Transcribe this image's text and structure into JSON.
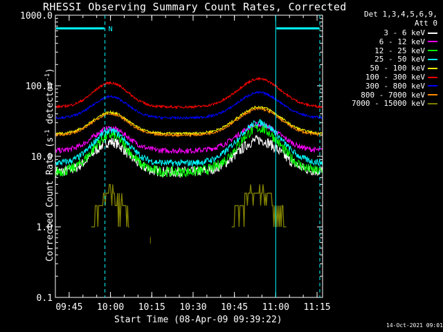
{
  "chart_data": {
    "type": "line",
    "title": "RHESSI Observing Summary Count Rates, Corrected",
    "xlabel": "Start Time (08-Apr-09 09:39:22)",
    "ylabel": "Corrected Count Rate (s^-1 detector^-1)",
    "ylabel_parts": {
      "pre": "Corrected Count Rate (s",
      "sup1": "-1",
      "mid": " detector",
      "sup2": "-1",
      "post": ")"
    },
    "yscale": "log",
    "ylim": [
      0.1,
      1000.0
    ],
    "xlim_minutes_after_0940": [
      0,
      97
    ],
    "x_ticks": [
      "09:45",
      "10:00",
      "10:15",
      "10:30",
      "10:45",
      "11:00",
      "11:15"
    ],
    "y_ticks": [
      "0.1",
      "1.0",
      "10.0",
      "100.0",
      "1000.0"
    ],
    "flag_label": "N",
    "legend_header": [
      "Det 1,3,4,5,6,9,",
      "Att 0"
    ],
    "legend_placement": "right, outside plot",
    "series": [
      {
        "name": "3 - 6 keV",
        "color": "#ffffff",
        "base": 6,
        "peak1": 16,
        "peak2": 17
      },
      {
        "name": "6 - 12 keV",
        "color": "#ff00ff",
        "base": 12,
        "peak1": 25,
        "peak2": 28
      },
      {
        "name": "12 - 25 keV",
        "color": "#00ff00",
        "base": 6,
        "peak1": 20,
        "peak2": 25
      },
      {
        "name": "25 - 50 keV",
        "color": "#00ffff",
        "base": 8,
        "peak1": 23,
        "peak2": 30
      },
      {
        "name": "50 - 100 keV",
        "color": "#ffff00",
        "base": 21,
        "peak1": 42,
        "peak2": 50
      },
      {
        "name": "100 - 300 keV",
        "color": "#ff0000",
        "base": 50,
        "peak1": 110,
        "peak2": 125
      },
      {
        "name": "300 - 800 keV",
        "color": "#0000ff",
        "base": 35,
        "peak1": 70,
        "peak2": 80
      },
      {
        "name": "800 - 7000 keV",
        "color": "#ff8c00",
        "base": 20,
        "peak1": 40,
        "peak2": 47
      },
      {
        "name": "7000 - 15000 keV",
        "color": "#808000",
        "base": 1.0,
        "peak1": 3,
        "peak2": 3.5
      }
    ],
    "peak_times_min": [
      20,
      74
    ],
    "vertical_markers_min": [
      {
        "t": 18,
        "style": "dashed"
      },
      {
        "t": 80,
        "style": "solid"
      },
      {
        "t": 96,
        "style": "dashed"
      }
    ],
    "flag_bars_min": [
      [
        0,
        18
      ],
      [
        80,
        96
      ]
    ],
    "grid": false
  },
  "footer": {
    "date_stamp": "14-Oct-2021 09:01"
  }
}
